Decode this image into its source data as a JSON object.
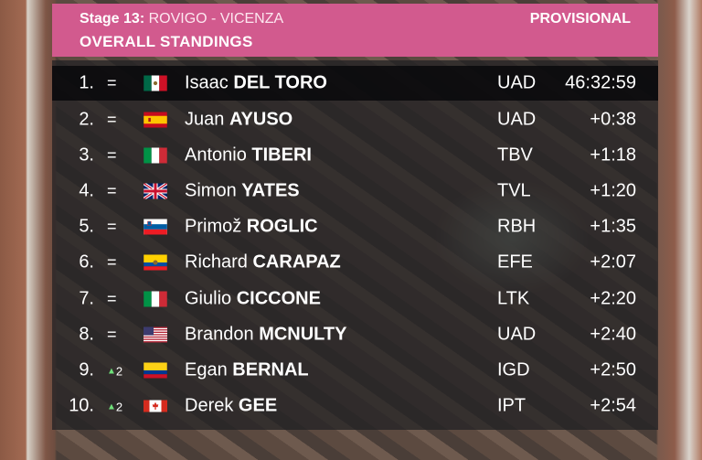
{
  "header": {
    "stage_label": "Stage 13:",
    "stage_route": "ROVIGO - VICENZA",
    "title": "OVERALL STANDINGS",
    "status": "PROVISIONAL"
  },
  "colors": {
    "header_bg": "#d25a8e",
    "movement_up": "#6ee07a"
  },
  "columns": [
    "position",
    "movement",
    "flag",
    "rider",
    "team",
    "time"
  ],
  "standings": [
    {
      "pos": "1.",
      "move": "=",
      "flag": "mexico-flag-icon",
      "first": "Isaac",
      "last": "DEL TORO",
      "team": "UAD",
      "time": "46:32:59"
    },
    {
      "pos": "2.",
      "move": "=",
      "flag": "spain-flag-icon",
      "first": "Juan",
      "last": "AYUSO",
      "team": "UAD",
      "time": "+0:38"
    },
    {
      "pos": "3.",
      "move": "=",
      "flag": "italy-flag-icon",
      "first": "Antonio",
      "last": "TIBERI",
      "team": "TBV",
      "time": "+1:18"
    },
    {
      "pos": "4.",
      "move": "=",
      "flag": "uk-flag-icon",
      "first": "Simon",
      "last": "YATES",
      "team": "TVL",
      "time": "+1:20"
    },
    {
      "pos": "5.",
      "move": "=",
      "flag": "slovenia-flag-icon",
      "first": "Primož",
      "last": "ROGLIC",
      "team": "RBH",
      "time": "+1:35"
    },
    {
      "pos": "6.",
      "move": "=",
      "flag": "ecuador-flag-icon",
      "first": "Richard",
      "last": "CARAPAZ",
      "team": "EFE",
      "time": "+2:07"
    },
    {
      "pos": "7.",
      "move": "=",
      "flag": "italy-flag-icon",
      "first": "Giulio",
      "last": "CICCONE",
      "team": "LTK",
      "time": "+2:20"
    },
    {
      "pos": "8.",
      "move": "=",
      "flag": "usa-flag-icon",
      "first": "Brandon",
      "last": "MCNULTY",
      "team": "UAD",
      "time": "+2:40"
    },
    {
      "pos": "9.",
      "move": "2",
      "flag": "colombia-flag-icon",
      "first": "Egan",
      "last": "BERNAL",
      "team": "IGD",
      "time": "+2:50"
    },
    {
      "pos": "10.",
      "move": "2",
      "flag": "canada-flag-icon",
      "first": "Derek",
      "last": "GEE",
      "team": "IPT",
      "time": "+2:54"
    }
  ]
}
